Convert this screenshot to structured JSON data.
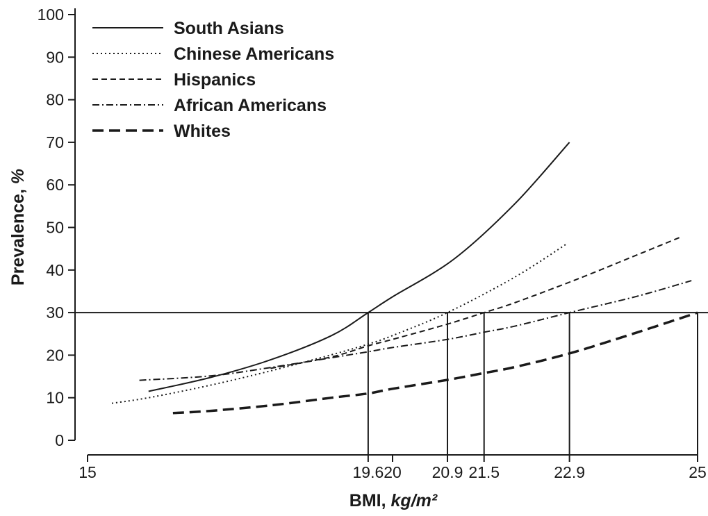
{
  "chart_data": {
    "type": "line",
    "title": "",
    "xlabel": "BMI, ",
    "xlabel_unit": "kg/m²",
    "ylabel": "Prevalence, ",
    "ylabel_unit": "%",
    "xlim": [
      15,
      25
    ],
    "ylim": [
      0,
      100
    ],
    "x_ticks": [
      15,
      19.6,
      20,
      20.9,
      21.5,
      22.9,
      25
    ],
    "x_tick_labels": [
      "15",
      "19.6",
      "20",
      "20.9",
      "21.5",
      "22.9",
      "25"
    ],
    "y_ticks": [
      0,
      10,
      20,
      30,
      40,
      50,
      60,
      70,
      80,
      90,
      100
    ],
    "y_tick_labels": [
      "0",
      "10",
      "20",
      "30",
      "40",
      "50",
      "60",
      "70",
      "80",
      "90",
      "100"
    ],
    "grid": false,
    "legend_position": "top-left",
    "reference_line": {
      "y": 30
    },
    "threshold_drops": [
      {
        "series": "South Asians",
        "x": 19.6,
        "y": 30
      },
      {
        "series": "Chinese Americans",
        "x": 20.9,
        "y": 30
      },
      {
        "series": "Hispanics",
        "x": 21.5,
        "y": 30
      },
      {
        "series": "African Americans",
        "x": 22.9,
        "y": 30
      },
      {
        "series": "Whites",
        "x": 25,
        "y": 30
      }
    ],
    "series": [
      {
        "name": "South Asians",
        "style": "solid",
        "x": [
          16.0,
          17.0,
          18.0,
          19.0,
          19.6,
          20.0,
          21.0,
          22.0,
          22.9
        ],
        "y": [
          11.5,
          14.7,
          18.9,
          24.6,
          30.0,
          33.7,
          42.5,
          55.5,
          70.0
        ]
      },
      {
        "name": "Chinese Americans",
        "style": "dotted",
        "x": [
          15.4,
          16.0,
          17.0,
          18.0,
          19.0,
          19.6,
          20.0,
          20.9,
          22.0,
          22.85
        ],
        "y": [
          8.7,
          10.0,
          12.9,
          16.3,
          20.1,
          22.6,
          24.6,
          30.0,
          38.3,
          46.1
        ]
      },
      {
        "name": "Hispanics",
        "style": "dashed",
        "x": [
          18.0,
          19.0,
          19.6,
          20.0,
          20.9,
          21.5,
          22.0,
          23.0,
          24.0,
          24.7
        ],
        "y": [
          16.9,
          19.6,
          22.2,
          23.7,
          27.3,
          30.0,
          32.3,
          37.7,
          43.5,
          47.6
        ]
      },
      {
        "name": "African Americans",
        "style": "dash-dot",
        "x": [
          15.85,
          17.0,
          18.0,
          19.0,
          19.6,
          20.0,
          20.9,
          21.5,
          22.0,
          22.9,
          24.0,
          24.9
        ],
        "y": [
          14.1,
          15.1,
          17.1,
          19.4,
          20.8,
          21.8,
          23.7,
          25.4,
          26.8,
          30.0,
          33.8,
          37.5
        ]
      },
      {
        "name": "Whites",
        "style": "long-dash",
        "x": [
          16.4,
          17.0,
          18.0,
          19.0,
          19.6,
          20.0,
          20.9,
          21.5,
          22.0,
          22.9,
          24.0,
          25.0
        ],
        "y": [
          6.4,
          6.9,
          8.2,
          10.0,
          11.0,
          12.1,
          14.2,
          15.8,
          17.2,
          20.4,
          25.3,
          30.0
        ]
      }
    ]
  }
}
